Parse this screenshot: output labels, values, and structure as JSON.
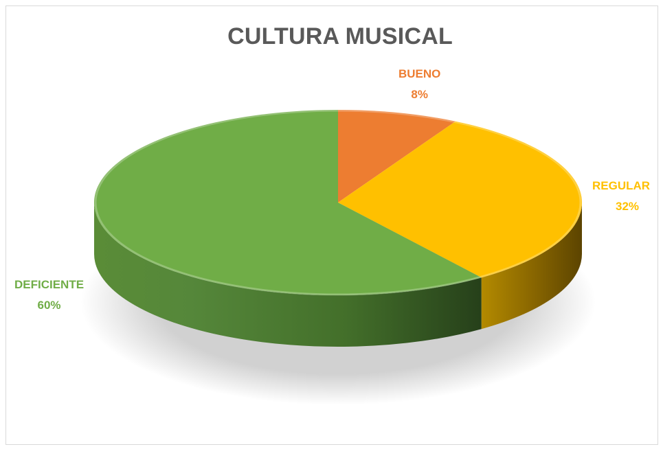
{
  "chart_data": {
    "type": "pie",
    "title": "CULTURA MUSICAL",
    "categories": [
      "BUENO",
      "REGULAR",
      "DEFICIENTE"
    ],
    "values": [
      8,
      32,
      60
    ],
    "labels": [
      "8%",
      "32%",
      "60%"
    ],
    "colors": [
      "#ED7D31",
      "#FFC000",
      "#70AD47"
    ],
    "style": "3d"
  }
}
